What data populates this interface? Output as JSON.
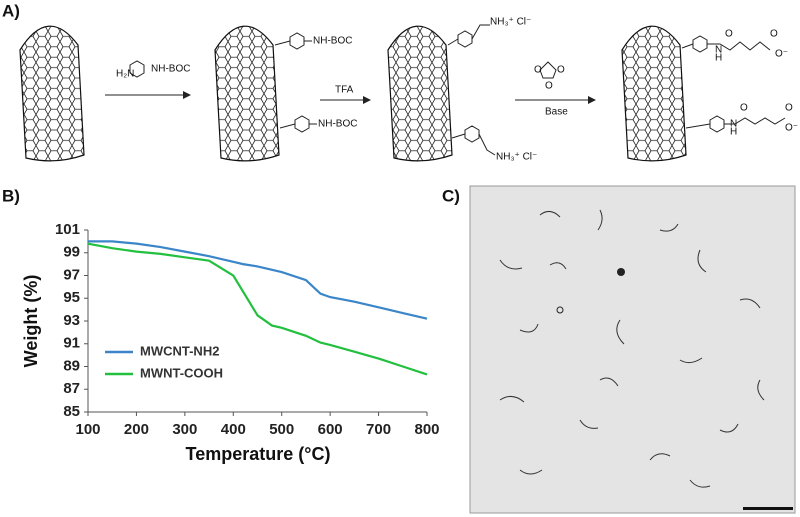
{
  "panel_labels": [
    "A)",
    "B)",
    "C)"
  ],
  "scheme": {
    "reagent": {
      "left": "H₂N",
      "right": "NH-BOC"
    },
    "product_1": {
      "top": "NH-BOC",
      "bottom": "NH-BOC"
    },
    "step_2": "TFA",
    "product_2": {
      "top": "NH₃⁺ Cl⁻",
      "bottom": "NH₃⁺ Cl⁻"
    },
    "anhydride_atoms": [
      "O",
      "O",
      "O"
    ],
    "step_3": "Base",
    "product_3": {
      "top": [
        "O",
        "N",
        "H",
        "O",
        "O⁻"
      ],
      "bottom": [
        "O",
        "N",
        "H",
        "O",
        "O⁻"
      ]
    }
  },
  "chart_data": {
    "type": "line",
    "xlabel": "Temperature (°C)",
    "ylabel": "Weight (%)",
    "x": [
      100,
      150,
      200,
      250,
      300,
      350,
      400,
      420,
      450,
      480,
      500,
      550,
      580,
      600,
      650,
      700,
      750,
      800
    ],
    "series": [
      {
        "name": "MWCNT-NH2",
        "color": "#3a86c8",
        "values": [
          100.0,
          100.0,
          99.8,
          99.5,
          99.1,
          98.7,
          98.2,
          98.0,
          97.8,
          97.5,
          97.3,
          96.6,
          95.4,
          95.1,
          94.7,
          94.2,
          93.7,
          93.2
        ]
      },
      {
        "name": "MWNT-COOH",
        "color": "#22c03e",
        "values": [
          99.8,
          99.4,
          99.1,
          98.9,
          98.6,
          98.3,
          97.0,
          95.6,
          93.5,
          92.6,
          92.4,
          91.7,
          91.1,
          90.9,
          90.3,
          89.7,
          89.0,
          88.3
        ]
      }
    ],
    "xlim": [
      100,
      800
    ],
    "xticks": [
      100,
      200,
      300,
      400,
      500,
      600,
      700,
      800
    ],
    "ylim": [
      85,
      101
    ],
    "yticks": [
      85,
      87,
      89,
      91,
      93,
      95,
      97,
      99,
      101
    ],
    "grid": false,
    "legend": "lower left"
  }
}
